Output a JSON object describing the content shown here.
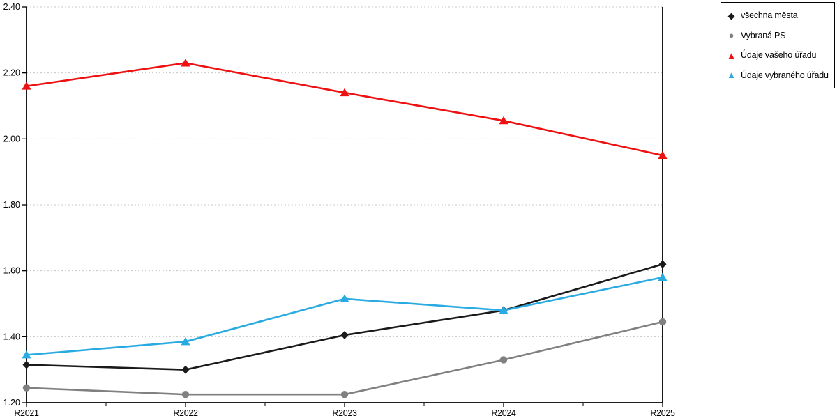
{
  "background_color": "#ffffff",
  "chart_data": {
    "type": "line",
    "title": "",
    "xlabel": "",
    "ylabel": "",
    "categories": [
      "R2021",
      "R2022",
      "R2023",
      "R2024",
      "R2025"
    ],
    "series": [
      {
        "name": "všechna města",
        "color": "#1a1a1a",
        "marker": "diamond",
        "values": [
          1.315,
          1.3,
          1.405,
          1.48,
          1.62
        ]
      },
      {
        "name": "Vybraná PS",
        "color": "#808080",
        "marker": "circle",
        "values": [
          1.245,
          1.225,
          1.225,
          1.33,
          1.445
        ]
      },
      {
        "name": "Údaje vašeho úřadu",
        "color": "#ee1111",
        "marker": "triangle",
        "values": [
          2.16,
          2.23,
          2.14,
          2.055,
          1.95
        ]
      },
      {
        "name": "Údaje vybraného úřadu",
        "color": "#29abe2",
        "marker": "triangle",
        "values": [
          1.345,
          1.385,
          1.515,
          1.48,
          1.58
        ]
      }
    ],
    "ylim": [
      1.2,
      2.4
    ],
    "ytick_step": 0.2,
    "yticks": [
      "1.20",
      "1.40",
      "1.60",
      "1.80",
      "2.00",
      "2.20",
      "2.40"
    ],
    "grid": "horizontal-dashed",
    "gridline_color": "#c8c8c8",
    "axis_color": "#000000",
    "minor_x_ticks_between_categories": true,
    "legend_position": "outside-top-right",
    "marker_glyphs": {
      "diamond": "◆",
      "circle": "●",
      "triangle": "▲"
    }
  }
}
